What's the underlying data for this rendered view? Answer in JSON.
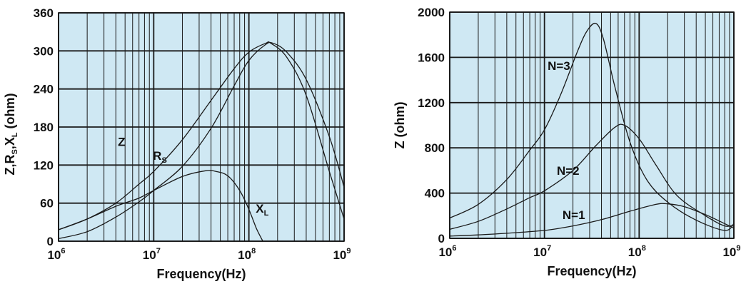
{
  "colors": {
    "plot_background": "#cfe8f3",
    "grid": "#1a1a1a",
    "curve": "#1a1a1a"
  },
  "chart_data": [
    {
      "type": "line",
      "xscale": "log",
      "xlim": [
        1000000,
        1000000000
      ],
      "ylim": [
        0,
        360
      ],
      "xlabel": "Frequency(Hz)",
      "ylabel": {
        "text": "Z,R",
        "sub1": "S",
        "mid": ",X",
        "sub2": "L",
        "unit": " (ohm)"
      },
      "x_ticks": [
        {
          "value": 1000000,
          "base": "10",
          "exp": "6"
        },
        {
          "value": 10000000,
          "base": "10",
          "exp": "7"
        },
        {
          "value": 100000000,
          "base": "10",
          "exp": "8"
        },
        {
          "value": 1000000000,
          "base": "10",
          "exp": "9"
        }
      ],
      "y_ticks": [
        "0",
        "60",
        "120",
        "180",
        "240",
        "300",
        "360"
      ],
      "grid": true,
      "series": [
        {
          "name": "Z",
          "label_base": "Z",
          "label_sub": "",
          "x": [
            1000000,
            2000000,
            4000000,
            7000000,
            10000000,
            20000000,
            40000000,
            70000000,
            100000000,
            150000000,
            170000000,
            250000000,
            400000000,
            700000000,
            1000000000
          ],
          "y": [
            18,
            35,
            60,
            90,
            110,
            160,
            222,
            272,
            298,
            312,
            312,
            290,
            230,
            110,
            35
          ]
        },
        {
          "name": "RS",
          "label_base": "R",
          "label_sub": "S",
          "x": [
            1000000,
            2000000,
            4000000,
            7000000,
            10000000,
            20000000,
            40000000,
            70000000,
            100000000,
            150000000,
            180000000,
            250000000,
            400000000,
            700000000,
            1000000000
          ],
          "y": [
            4,
            15,
            38,
            62,
            80,
            118,
            178,
            245,
            285,
            310,
            312,
            298,
            255,
            165,
            85
          ]
        },
        {
          "name": "XL",
          "label_base": "X",
          "label_sub": "L",
          "x": [
            1000000,
            2000000,
            4000000,
            7000000,
            10000000,
            20000000,
            35000000,
            45000000,
            60000000,
            80000000,
            100000000,
            120000000,
            140000000
          ],
          "y": [
            18,
            35,
            55,
            68,
            80,
            102,
            111,
            110,
            103,
            80,
            50,
            20,
            0
          ]
        }
      ]
    },
    {
      "type": "line",
      "xscale": "log",
      "xlim": [
        1000000,
        1000000000
      ],
      "ylim": [
        0,
        2000
      ],
      "xlabel": "Frequency(Hz)",
      "ylabel": {
        "text": "Z (ohm)"
      },
      "x_ticks": [
        {
          "value": 1000000,
          "base": "10",
          "exp": "6"
        },
        {
          "value": 10000000,
          "base": "10",
          "exp": "7"
        },
        {
          "value": 100000000,
          "base": "10",
          "exp": "8"
        },
        {
          "value": 1000000000,
          "base": "10",
          "exp": "9"
        }
      ],
      "y_ticks": [
        "0",
        "400",
        "800",
        "1200",
        "1600",
        "2000"
      ],
      "grid": true,
      "series": [
        {
          "name": "N=3",
          "label_base": "N=3",
          "label_sub": "",
          "x": [
            1000000,
            2000000,
            4000000,
            7000000,
            10000000,
            15000000,
            22000000,
            28000000,
            35000000,
            42000000,
            55000000,
            80000000,
            120000000,
            200000000,
            400000000,
            800000000,
            1000000000
          ],
          "y": [
            180,
            300,
            520,
            780,
            960,
            1280,
            1640,
            1830,
            1900,
            1760,
            1350,
            850,
            520,
            320,
            160,
            70,
            130
          ]
        },
        {
          "name": "N=2",
          "label_base": "N=2",
          "label_sub": "",
          "x": [
            1000000,
            2000000,
            4000000,
            7000000,
            10000000,
            20000000,
            35000000,
            55000000,
            70000000,
            100000000,
            150000000,
            250000000,
            500000000,
            800000000,
            1000000000
          ],
          "y": [
            80,
            150,
            260,
            360,
            420,
            600,
            820,
            980,
            1000,
            880,
            650,
            380,
            200,
            110,
            120
          ]
        },
        {
          "name": "N=1",
          "label_base": "N=1",
          "label_sub": "",
          "x": [
            1000000,
            2000000,
            4000000,
            10000000,
            20000000,
            40000000,
            80000000,
            150000000,
            200000000,
            300000000,
            500000000,
            800000000,
            1000000000
          ],
          "y": [
            20,
            30,
            45,
            70,
            110,
            165,
            240,
            300,
            305,
            280,
            210,
            130,
            90
          ]
        }
      ]
    }
  ]
}
